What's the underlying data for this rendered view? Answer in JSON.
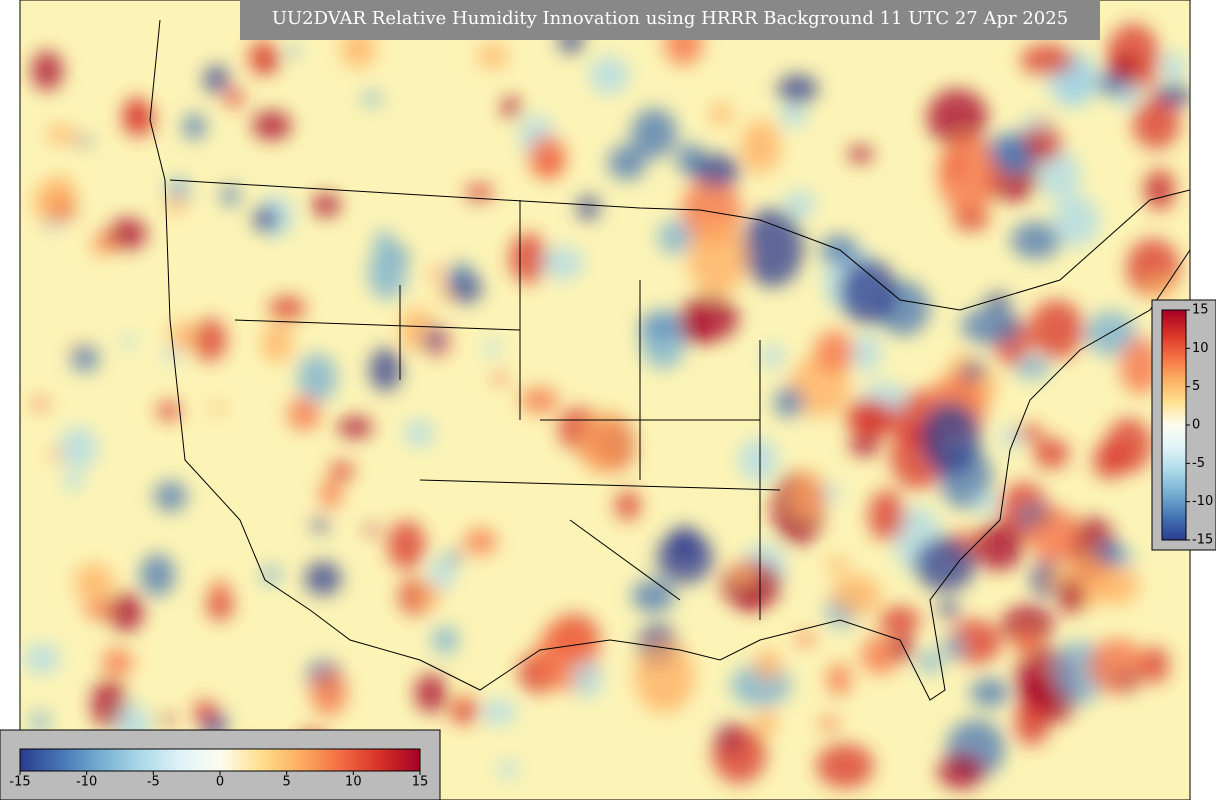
{
  "title": "UU2DVAR Relative Humidity Innovation using HRRR Background 11 UTC 27 Apr 2025",
  "colorbar_horizontal": {
    "lim": [
      -15,
      15
    ],
    "ticks": [
      -15,
      -10,
      -5,
      0,
      5,
      10,
      15
    ]
  },
  "colorbar_vertical": {
    "lim": [
      -15,
      15
    ],
    "ticks": [
      15,
      10,
      5,
      0,
      -5,
      -10,
      -15
    ]
  },
  "colormap": [
    "#2b3b8f",
    "#4575b4",
    "#74add1",
    "#abd9e9",
    "#e0f3f8",
    "#fdfdf0",
    "#fee090",
    "#fdae61",
    "#f46d43",
    "#d73027",
    "#a50026"
  ]
}
